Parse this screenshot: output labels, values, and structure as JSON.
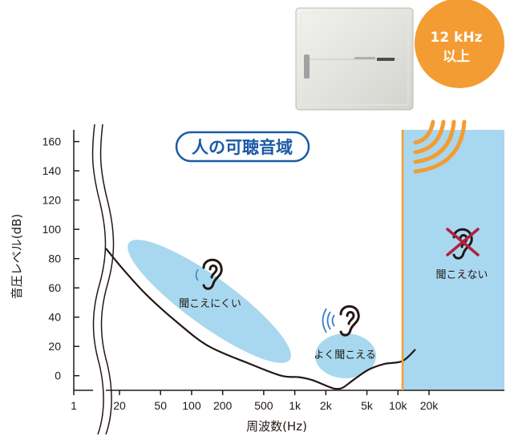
{
  "title": "人の可聴音域",
  "badge": {
    "line1": "12 kHz",
    "line2": "以上"
  },
  "colors": {
    "inaudible_zone": "#a8d8ef",
    "ellipse": "#a8d8ef",
    "boundary": "#f39c33",
    "badge": "#f39c33",
    "title": "#1b5aa6",
    "cross": "#b41e3c"
  },
  "labels": {
    "hard_to_hear": "聞こえにくい",
    "easy_to_hear": "よく聞こえる",
    "inaudible": "聞こえない"
  },
  "icons": {
    "device": "ultrasonic-device-icon",
    "ear": "ear-icon",
    "sound_waves": "sound-waves-icon",
    "cross": "cross-icon"
  },
  "chart_data": {
    "type": "line",
    "title": "人の可聴音域",
    "xlabel": "周波数(Hz)",
    "ylabel": "音圧レベル(dB)",
    "x_scale": "log",
    "x_ticks": [
      "1",
      "20",
      "50",
      "100",
      "200",
      "500",
      "1k",
      "2k",
      "5k",
      "10k",
      "20k"
    ],
    "y_ticks": [
      "0",
      "20",
      "40",
      "60",
      "80",
      "100",
      "120",
      "140",
      "160"
    ],
    "ylim": [
      -10,
      168
    ],
    "boundary_x": 12000,
    "series": [
      {
        "x": [
          20,
          30,
          50,
          100,
          200,
          500,
          1000,
          1500,
          2000,
          3000,
          3500,
          4000,
          5000,
          7000,
          10000,
          15000,
          20000
        ],
        "y": [
          87,
          72,
          55,
          36,
          20,
          8,
          0,
          -1,
          -3,
          -8,
          -9,
          -8,
          -3,
          4,
          8,
          10,
          18
        ]
      }
    ]
  }
}
